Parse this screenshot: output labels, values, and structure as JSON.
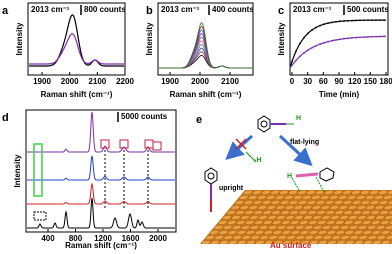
{
  "panels": [
    {
      "label": "a",
      "annotation": "2013 cm⁻¹",
      "scale_bar": "800 counts",
      "y_label": "Intensity",
      "x_label": "Raman shift (cm⁻¹)",
      "x_ticks": [
        "1900",
        "2000",
        "2100",
        "2200"
      ]
    },
    {
      "label": "b",
      "annotation": "2013 cm⁻¹",
      "scale_bar": "400 counts",
      "y_label": "Intensity",
      "x_label": "Raman shift (cm⁻¹)",
      "x_ticks": [
        "1900",
        "2000",
        "2100"
      ]
    },
    {
      "label": "c",
      "annotation": "2013 cm⁻¹",
      "scale_bar": "500 counts",
      "y_label": "Intensity",
      "x_label": "Time (min)",
      "x_ticks": [
        "0",
        "30",
        "60",
        "90",
        "120",
        "150",
        "180"
      ]
    },
    {
      "label": "d",
      "scale_bar": "5000 counts",
      "y_label": "Intensity",
      "x_label": "Raman shift (cm⁻¹)",
      "x_ticks": [
        "400",
        "800",
        "1200",
        "1600",
        "2000"
      ]
    },
    {
      "label": "e",
      "upright": "upright",
      "flat_lying": "flat-lying",
      "surface": "Au surface",
      "h_loss": "-H",
      "h_atom": "H",
      "h_top": "H"
    }
  ]
}
